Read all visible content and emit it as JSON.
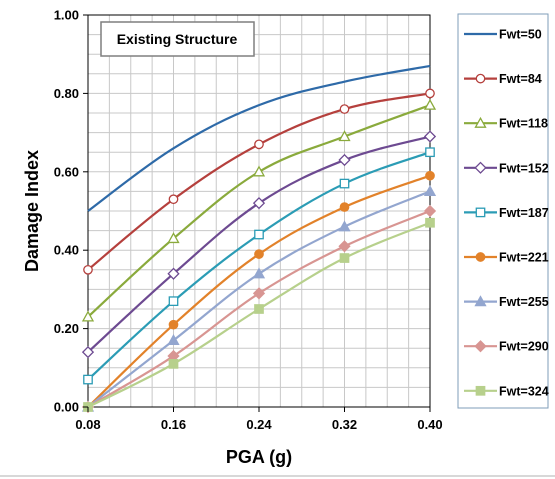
{
  "chart_data": {
    "type": "line",
    "annotation": "Existing Structure",
    "xlabel": "PGA (g)",
    "ylabel": "Damage Index",
    "x": [
      0.08,
      0.16,
      0.24,
      0.32,
      0.4
    ],
    "xticks": [
      "0.08",
      "0.16",
      "0.24",
      "0.32",
      "0.40"
    ],
    "yticks": [
      "0.00",
      "0.20",
      "0.40",
      "0.60",
      "0.80",
      "1.00"
    ],
    "xlim": [
      0.08,
      0.4
    ],
    "ylim": [
      0,
      1.0
    ],
    "grid": true,
    "legend_position": "right",
    "series": [
      {
        "name": "Fwt=50",
        "color": "#2e6aa8",
        "marker": "none",
        "values": [
          0.5,
          0.66,
          0.77,
          0.83,
          0.87
        ]
      },
      {
        "name": "Fwt=84",
        "color": "#b5403d",
        "marker": "circle-open",
        "values": [
          0.35,
          0.53,
          0.67,
          0.76,
          0.8
        ]
      },
      {
        "name": "Fwt=118",
        "color": "#8aaa3c",
        "marker": "triangle-open",
        "values": [
          0.23,
          0.43,
          0.6,
          0.69,
          0.77
        ]
      },
      {
        "name": "Fwt=152",
        "color": "#6d4a91",
        "marker": "diamond-open",
        "values": [
          0.14,
          0.34,
          0.52,
          0.63,
          0.69
        ]
      },
      {
        "name": "Fwt=187",
        "color": "#2b9cb5",
        "marker": "square-open",
        "values": [
          0.07,
          0.27,
          0.44,
          0.57,
          0.65
        ]
      },
      {
        "name": "Fwt=221",
        "color": "#e2822a",
        "marker": "circle-filled",
        "values": [
          0.0,
          0.21,
          0.39,
          0.51,
          0.59
        ]
      },
      {
        "name": "Fwt=255",
        "color": "#93a6cf",
        "marker": "triangle-filled",
        "values": [
          0.0,
          0.17,
          0.34,
          0.46,
          0.55
        ]
      },
      {
        "name": "Fwt=290",
        "color": "#d89592",
        "marker": "diamond-filled",
        "values": [
          0.0,
          0.13,
          0.29,
          0.41,
          0.5
        ]
      },
      {
        "name": "Fwt=324",
        "color": "#b7d08c",
        "marker": "square-filled",
        "values": [
          0.0,
          0.11,
          0.25,
          0.38,
          0.47
        ]
      }
    ]
  }
}
